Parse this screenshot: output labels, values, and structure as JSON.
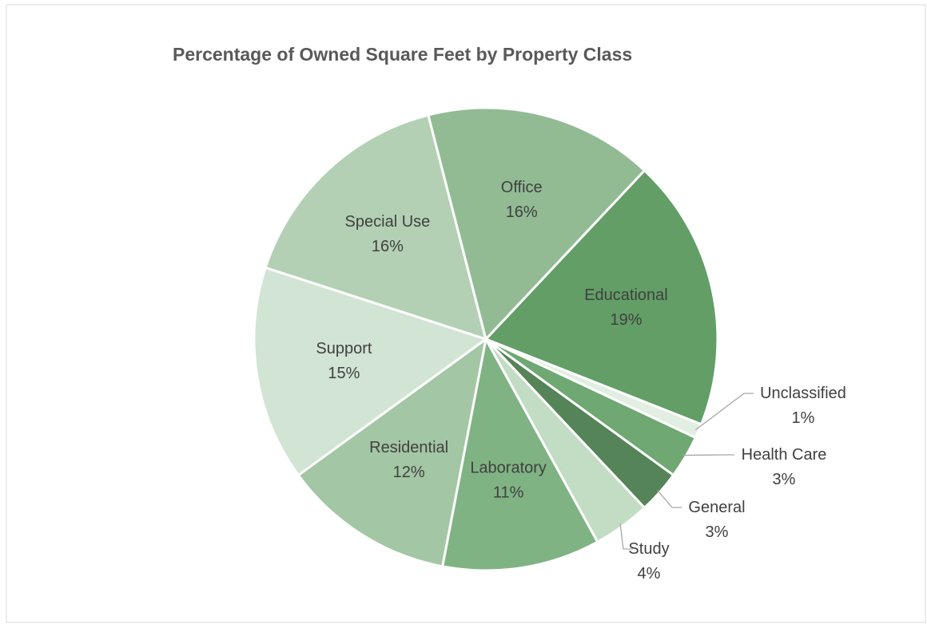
{
  "chart_data": {
    "type": "pie",
    "title": "Percentage of Owned Square Feet by Property Class",
    "categories": [
      "Educational",
      "Unclassified",
      "Health Care",
      "General",
      "Study",
      "Laboratory",
      "Residential",
      "Support",
      "Special Use",
      "Office"
    ],
    "values": [
      19,
      1,
      3,
      3,
      4,
      11,
      12,
      15,
      16,
      16
    ],
    "value_labels": [
      "19%",
      "1%",
      "3%",
      "3%",
      "4%",
      "11%",
      "12%",
      "15%",
      "16%",
      "16%"
    ],
    "colors": [
      "#629e66",
      "#e2eee2",
      "#6fa872",
      "#548457",
      "#c3dcc4",
      "#80b383",
      "#a3c6a4",
      "#d2e4d3",
      "#b3d0b4",
      "#92bb94"
    ]
  }
}
